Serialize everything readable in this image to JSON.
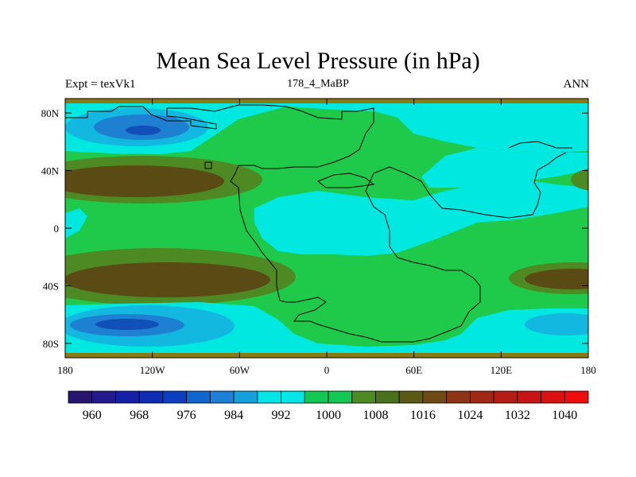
{
  "title": "Mean Sea Level Pressure (in hPa)",
  "subtitle_left": "Expt = texVk1",
  "subtitle_center": "178_4_MaBP",
  "subtitle_right": "ANN",
  "map": {
    "lon_range": [
      -180,
      180
    ],
    "lat_range": [
      -90,
      90
    ],
    "lon_ticks": [
      {
        "value": -180,
        "label": "180"
      },
      {
        "value": -120,
        "label": "120W"
      },
      {
        "value": -60,
        "label": "60W"
      },
      {
        "value": 0,
        "label": "0"
      },
      {
        "value": 60,
        "label": "60E"
      },
      {
        "value": 120,
        "label": "120E"
      },
      {
        "value": 180,
        "label": "180"
      }
    ],
    "lat_ticks": [
      {
        "value": 80,
        "label": "80N"
      },
      {
        "value": 40,
        "label": "40N"
      },
      {
        "value": 0,
        "label": "0"
      },
      {
        "value": -40,
        "label": "40S"
      },
      {
        "value": -80,
        "label": "80S"
      }
    ],
    "palette": {
      "background": "#1fc94a",
      "cyan": "#00e8e0",
      "light_blue": "#13b8e0",
      "blue": "#1e80d0",
      "dark_blue": "#1050b8",
      "olive": "#4e8a24",
      "brown": "#5a4a14",
      "tan_edge": "#8a7a14",
      "coast": "#000000"
    }
  },
  "colorbar": {
    "colors": [
      "#28166e",
      "#241a8c",
      "#1420a8",
      "#0e2cb4",
      "#0c3fc0",
      "#1165cf",
      "#1e7fd6",
      "#14a0dc",
      "#00e6e6",
      "#00e6e6",
      "#13c852",
      "#13c852",
      "#4e8a24",
      "#4a701c",
      "#5a5a14",
      "#6e4a14",
      "#8c3414",
      "#a02814",
      "#b41c14",
      "#c81414",
      "#dc1010",
      "#ee0c0c"
    ],
    "labels": [
      "960",
      "968",
      "976",
      "984",
      "992",
      "1000",
      "1008",
      "1016",
      "1024",
      "1032",
      "1040"
    ]
  }
}
